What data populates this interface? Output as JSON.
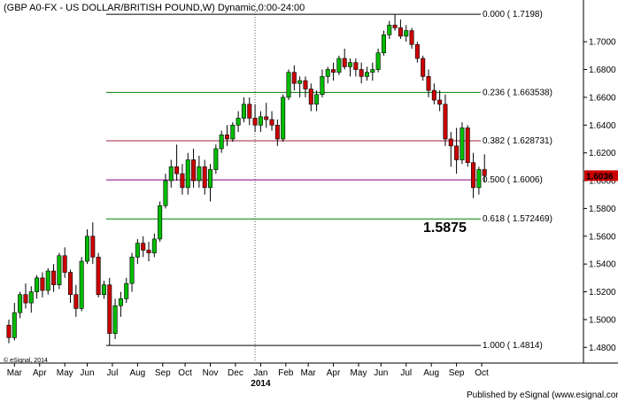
{
  "chart_data": {
    "type": "candlestick",
    "title": "(GBP A0-FX - US DOLLAR/BRITISH POUND,W) Dynamic,0:00-24:00",
    "watermark": "© eSignal, 2014",
    "footer": "Published by eSignal (www.esignal.com)",
    "ylim": [
      1.47,
      1.7275
    ],
    "y_ticks": [
      1.48,
      1.5,
      1.52,
      1.54,
      1.56,
      1.58,
      1.6,
      1.62,
      1.64,
      1.66,
      1.68,
      1.7
    ],
    "y_tick_labels": [
      "1.4800",
      "1.5000",
      "1.5200",
      "1.5400",
      "1.5600",
      "1.5800",
      "1.6000",
      "1.6200",
      "1.6400",
      "1.6600",
      "1.6800",
      "1.7000"
    ],
    "months": [
      {
        "label": "Mar",
        "week": 1
      },
      {
        "label": "Apr",
        "week": 5.5
      },
      {
        "label": "May",
        "week": 10
      },
      {
        "label": "Jun",
        "week": 14
      },
      {
        "label": "Jul",
        "week": 18.5
      },
      {
        "label": "Aug",
        "week": 23
      },
      {
        "label": "Sep",
        "week": 27.5
      },
      {
        "label": "Oct",
        "week": 31.5
      },
      {
        "label": "Nov",
        "week": 36
      },
      {
        "label": "Dec",
        "week": 40.5
      },
      {
        "label": "Jan",
        "week": 45
      },
      {
        "label": "Feb",
        "week": 49.5
      },
      {
        "label": "Mar",
        "week": 53.5
      },
      {
        "label": "Apr",
        "week": 58
      },
      {
        "label": "May",
        "week": 62.5
      },
      {
        "label": "Jun",
        "week": 66.5
      },
      {
        "label": "Jul",
        "week": 71
      },
      {
        "label": "Aug",
        "week": 75.5
      },
      {
        "label": "Sep",
        "week": 80
      },
      {
        "label": "Oct",
        "week": 84.5
      }
    ],
    "year_label": {
      "label": "2014",
      "week": 45
    },
    "year_divider_week": 44,
    "fibonacci": [
      {
        "label": "0.000 ( 1.7198)",
        "value": 1.7198,
        "color": "#000000"
      },
      {
        "label": "0.236 ( 1.663538)",
        "value": 1.663538,
        "color": "#008000"
      },
      {
        "label": "0.382 ( 1.628731)",
        "value": 1.628731,
        "color": "#a0203a"
      },
      {
        "label": "0.500 ( 1.6006)",
        "value": 1.6006,
        "color": "#800080"
      },
      {
        "label": "0.618 ( 1.572469)",
        "value": 1.572469,
        "color": "#008000"
      },
      {
        "label": "1.000 ( 1.4814)",
        "value": 1.4814,
        "color": "#000000"
      }
    ],
    "annotation": {
      "label": "1.5875",
      "value": 1.5875
    },
    "current_price": {
      "label": "1.6036",
      "value": 1.6036,
      "color": "#cc0000"
    },
    "colors": {
      "up": "#00bb00",
      "down": "#cc0000",
      "wick": "#000000"
    },
    "candles": [
      [
        1.496,
        1.5,
        1.483,
        1.487
      ],
      [
        1.487,
        1.512,
        1.485,
        1.505
      ],
      [
        1.505,
        1.52,
        1.501,
        1.518
      ],
      [
        1.518,
        1.526,
        1.508,
        1.512
      ],
      [
        1.512,
        1.524,
        1.505,
        1.52
      ],
      [
        1.52,
        1.532,
        1.515,
        1.53
      ],
      [
        1.53,
        1.534,
        1.516,
        1.521
      ],
      [
        1.521,
        1.537,
        1.518,
        1.535
      ],
      [
        1.535,
        1.54,
        1.52,
        1.525
      ],
      [
        1.525,
        1.548,
        1.522,
        1.546
      ],
      [
        1.546,
        1.552,
        1.53,
        1.534
      ],
      [
        1.534,
        1.536,
        1.512,
        1.518
      ],
      [
        1.518,
        1.525,
        1.502,
        1.508
      ],
      [
        1.508,
        1.545,
        1.506,
        1.542
      ],
      [
        1.542,
        1.565,
        1.54,
        1.56
      ],
      [
        1.56,
        1.57,
        1.54,
        1.545
      ],
      [
        1.545,
        1.548,
        1.516,
        1.518
      ],
      [
        1.518,
        1.528,
        1.515,
        1.525
      ],
      [
        1.525,
        1.53,
        1.4814,
        1.49
      ],
      [
        1.49,
        1.515,
        1.486,
        1.51
      ],
      [
        1.51,
        1.52,
        1.502,
        1.515
      ],
      [
        1.515,
        1.53,
        1.512,
        1.526
      ],
      [
        1.526,
        1.548,
        1.52,
        1.545
      ],
      [
        1.545,
        1.558,
        1.54,
        1.555
      ],
      [
        1.555,
        1.56,
        1.545,
        1.55
      ],
      [
        1.55,
        1.556,
        1.542,
        1.548
      ],
      [
        1.548,
        1.562,
        1.545,
        1.558
      ],
      [
        1.558,
        1.585,
        1.556,
        1.582
      ],
      [
        1.582,
        1.605,
        1.58,
        1.6
      ],
      [
        1.6,
        1.615,
        1.595,
        1.61
      ],
      [
        1.61,
        1.626,
        1.6,
        1.605
      ],
      [
        1.605,
        1.612,
        1.59,
        1.595
      ],
      [
        1.595,
        1.62,
        1.59,
        1.615
      ],
      [
        1.615,
        1.623,
        1.595,
        1.6
      ],
      [
        1.6,
        1.618,
        1.595,
        1.61
      ],
      [
        1.61,
        1.615,
        1.59,
        1.595
      ],
      [
        1.595,
        1.612,
        1.585,
        1.608
      ],
      [
        1.608,
        1.626,
        1.605,
        1.623
      ],
      [
        1.623,
        1.636,
        1.62,
        1.633
      ],
      [
        1.633,
        1.64,
        1.625,
        1.63
      ],
      [
        1.63,
        1.642,
        1.628,
        1.64
      ],
      [
        1.64,
        1.65,
        1.635,
        1.645
      ],
      [
        1.645,
        1.66,
        1.642,
        1.655
      ],
      [
        1.655,
        1.66,
        1.64,
        1.645
      ],
      [
        1.645,
        1.655,
        1.635,
        1.64
      ],
      [
        1.64,
        1.65,
        1.635,
        1.646
      ],
      [
        1.646,
        1.656,
        1.638,
        1.644
      ],
      [
        1.644,
        1.65,
        1.636,
        1.64
      ],
      [
        1.64,
        1.644,
        1.625,
        1.63
      ],
      [
        1.63,
        1.662,
        1.628,
        1.66
      ],
      [
        1.66,
        1.68,
        1.658,
        1.678
      ],
      [
        1.678,
        1.683,
        1.665,
        1.67
      ],
      [
        1.67,
        1.675,
        1.66,
        1.672
      ],
      [
        1.672,
        1.675,
        1.66,
        1.666
      ],
      [
        1.666,
        1.67,
        1.65,
        1.655
      ],
      [
        1.655,
        1.665,
        1.65,
        1.662
      ],
      [
        1.662,
        1.68,
        1.66,
        1.675
      ],
      [
        1.675,
        1.682,
        1.67,
        1.68
      ],
      [
        1.68,
        1.685,
        1.672,
        1.678
      ],
      [
        1.678,
        1.69,
        1.676,
        1.688
      ],
      [
        1.688,
        1.695,
        1.68,
        1.682
      ],
      [
        1.682,
        1.688,
        1.675,
        1.685
      ],
      [
        1.685,
        1.688,
        1.675,
        1.68
      ],
      [
        1.68,
        1.685,
        1.67,
        1.675
      ],
      [
        1.675,
        1.682,
        1.672,
        1.678
      ],
      [
        1.678,
        1.685,
        1.672,
        1.68
      ],
      [
        1.68,
        1.695,
        1.678,
        1.692
      ],
      [
        1.692,
        1.708,
        1.69,
        1.705
      ],
      [
        1.705,
        1.715,
        1.702,
        1.712
      ],
      [
        1.712,
        1.7198,
        1.708,
        1.71
      ],
      [
        1.71,
        1.716,
        1.702,
        1.704
      ],
      [
        1.704,
        1.712,
        1.7,
        1.708
      ],
      [
        1.708,
        1.71,
        1.695,
        1.698
      ],
      [
        1.698,
        1.7,
        1.685,
        1.688
      ],
      [
        1.688,
        1.69,
        1.672,
        1.675
      ],
      [
        1.675,
        1.68,
        1.66,
        1.665
      ],
      [
        1.665,
        1.67,
        1.655,
        1.658
      ],
      [
        1.658,
        1.665,
        1.65,
        1.655
      ],
      [
        1.655,
        1.662,
        1.625,
        1.63
      ],
      [
        1.63,
        1.635,
        1.61,
        1.625
      ],
      [
        1.625,
        1.638,
        1.605,
        1.615
      ],
      [
        1.615,
        1.642,
        1.612,
        1.638
      ],
      [
        1.638,
        1.64,
        1.61,
        1.613
      ],
      [
        1.613,
        1.62,
        1.5875,
        1.595
      ],
      [
        1.595,
        1.61,
        1.59,
        1.608
      ],
      [
        1.608,
        1.619,
        1.599,
        1.6036
      ]
    ]
  }
}
